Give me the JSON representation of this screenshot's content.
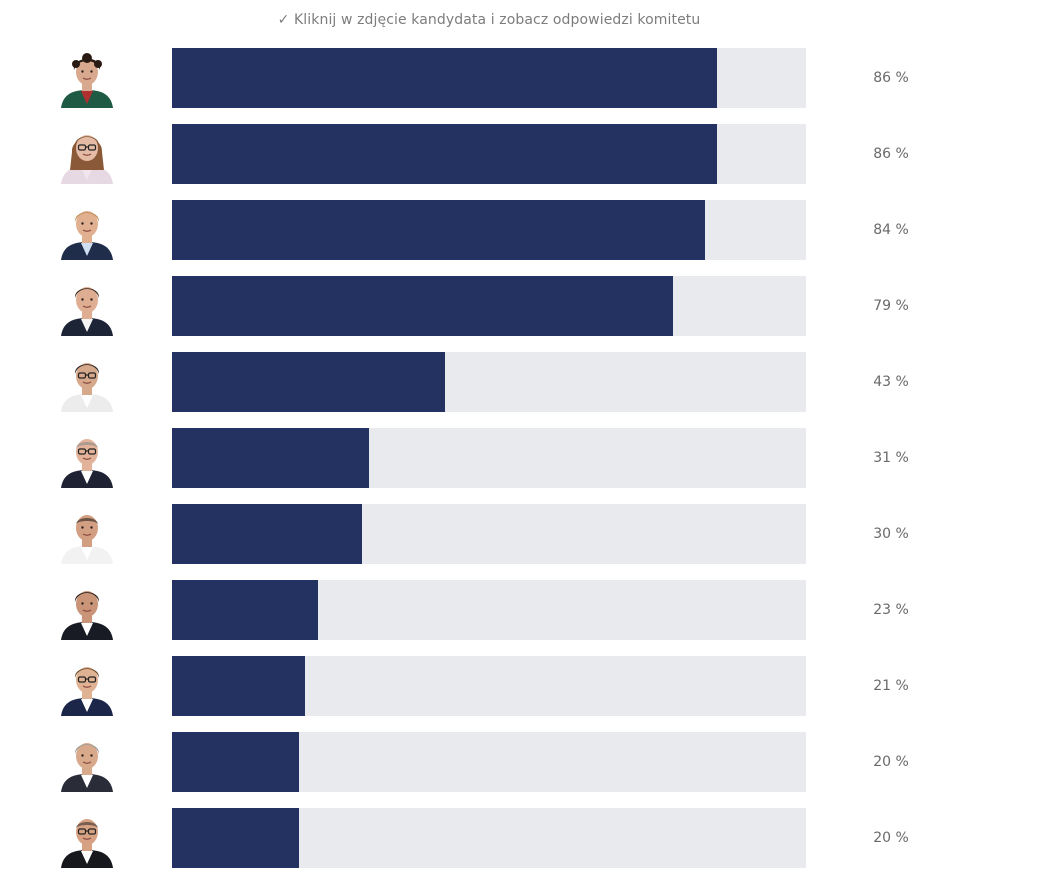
{
  "hint": "✓ Kliknij w zdjęcie kandydata i zobacz odpowiedzi komitetu",
  "chart_data": {
    "type": "bar",
    "orientation": "horizontal",
    "xlim": [
      0,
      100
    ],
    "unit": "%",
    "values": [
      86,
      86,
      84,
      79,
      43,
      31,
      30,
      23,
      21,
      20,
      20
    ],
    "labels": [
      "86 %",
      "86 %",
      "84 %",
      "79 %",
      "43 %",
      "31 %",
      "30 %",
      "23 %",
      "21 %",
      "20 %",
      "20 %"
    ],
    "colors": {
      "fill": "#233261",
      "track": "#e8eaed"
    }
  },
  "avatars": [
    {
      "icon": "candidate-photo-icon",
      "skin": "#d8a98e",
      "hair": "#2a1a14",
      "clothes": "#1f5a44",
      "shirt": "#b03030",
      "hairStyle": "curly",
      "glasses": false
    },
    {
      "icon": "candidate-photo-icon",
      "skin": "#e4bca6",
      "hair": "#8a5a38",
      "clothes": "#e7d9e4",
      "shirt": "#f1e6ee",
      "hairStyle": "long",
      "glasses": true
    },
    {
      "icon": "candidate-photo-icon",
      "skin": "#e0b090",
      "hair": "#c08a54",
      "clothes": "#1f2c4a",
      "shirt": "#cfe0f2",
      "hairStyle": "short",
      "glasses": false
    },
    {
      "icon": "candidate-photo-icon",
      "skin": "#dfae92",
      "hair": "#3a2a20",
      "clothes": "#1d2436",
      "shirt": "#f4f4f4",
      "hairStyle": "short",
      "glasses": false
    },
    {
      "icon": "candidate-photo-icon",
      "skin": "#d7a98c",
      "hair": "#2b2220",
      "clothes": "#ececec",
      "shirt": "#ffffff",
      "hairStyle": "short",
      "glasses": true
    },
    {
      "icon": "candidate-photo-icon",
      "skin": "#e2b39a",
      "hair": "#8a8a8a",
      "clothes": "#1e2232",
      "shirt": "#ffffff",
      "hairStyle": "bald",
      "glasses": true
    },
    {
      "icon": "candidate-photo-icon",
      "skin": "#d39f82",
      "hair": "#2a2320",
      "clothes": "#f2f2f2",
      "shirt": "#ffffff",
      "hairStyle": "bald",
      "glasses": false
    },
    {
      "icon": "candidate-photo-icon",
      "skin": "#c99478",
      "hair": "#2a1e18",
      "clothes": "#181b24",
      "shirt": "#ffffff",
      "hairStyle": "short",
      "glasses": false
    },
    {
      "icon": "candidate-photo-icon",
      "skin": "#e0b294",
      "hair": "#6a4a2a",
      "clothes": "#1b2648",
      "shirt": "#ffffff",
      "hairStyle": "short",
      "glasses": true
    },
    {
      "icon": "candidate-photo-icon",
      "skin": "#d9a98c",
      "hair": "#9a9a9a",
      "clothes": "#2a2c38",
      "shirt": "#ffffff",
      "hairStyle": "short",
      "glasses": false
    },
    {
      "icon": "candidate-photo-icon",
      "skin": "#d7a284",
      "hair": "#3a3030",
      "clothes": "#17181e",
      "shirt": "#ffffff",
      "hairStyle": "bald",
      "glasses": true
    }
  ]
}
